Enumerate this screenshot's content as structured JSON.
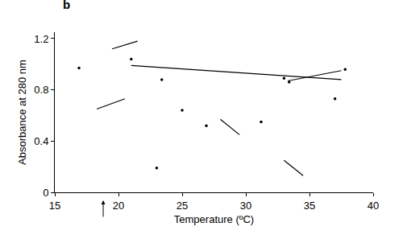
{
  "chart_data": {
    "type": "scatter",
    "panel_label": "b",
    "x_label": "Temperature (ºC)",
    "y_label": "Absorbance at 280 nm",
    "color": "#000000",
    "xlim": [
      15,
      40
    ],
    "xticks": [
      15,
      20,
      25,
      30,
      35,
      40
    ],
    "ylim": [
      0,
      1.25
    ],
    "yticks": [
      0,
      0.4,
      0.8,
      1.2
    ],
    "arrows": [
      {
        "x": 18.8
      }
    ],
    "series": [
      {
        "type": "scatter",
        "marker": "dot",
        "x": [
          16.9,
          21.0,
          23.4,
          23.0,
          25.0,
          26.9,
          31.2,
          33.0,
          33.4,
          37.0,
          37.8
        ],
        "values": [
          0.97,
          1.04,
          0.88,
          0.19,
          0.64,
          0.52,
          0.55,
          0.89,
          0.86,
          0.73,
          0.96
        ]
      },
      {
        "type": "line",
        "x": [
          18.3,
          20.5
        ],
        "values": [
          0.65,
          0.73
        ]
      },
      {
        "type": "line",
        "x": [
          19.5,
          21.5
        ],
        "values": [
          1.12,
          1.18
        ]
      },
      {
        "type": "line",
        "x": [
          21.0,
          37.5
        ],
        "values": [
          0.99,
          0.88
        ]
      },
      {
        "type": "line",
        "x": [
          33.3,
          37.5
        ],
        "values": [
          0.87,
          0.95
        ]
      },
      {
        "type": "line",
        "x": [
          28.0,
          29.5
        ],
        "values": [
          0.57,
          0.45
        ]
      },
      {
        "type": "line",
        "x": [
          33.0,
          34.5
        ],
        "values": [
          0.25,
          0.13
        ]
      }
    ]
  }
}
